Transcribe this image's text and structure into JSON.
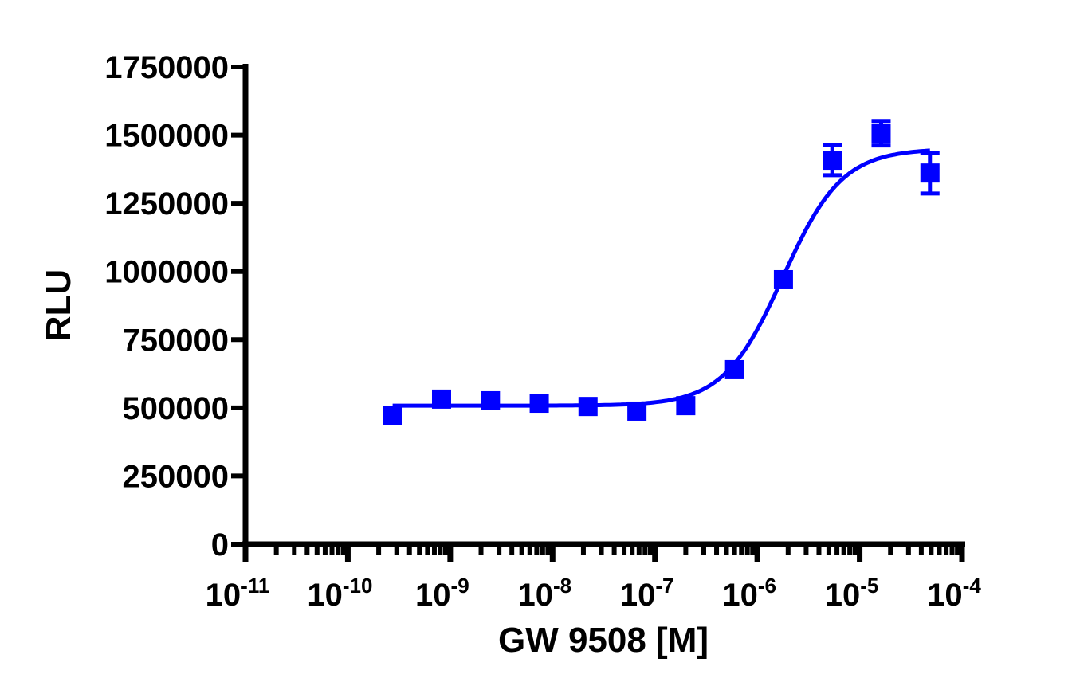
{
  "chart_data": {
    "type": "scatter",
    "title": "",
    "xlabel": "GW 9508 [M]",
    "ylabel": "RLU",
    "xscale": "log",
    "xlim": [
      1e-11,
      0.0001
    ],
    "ylim": [
      0,
      1750000
    ],
    "x_ticks": [
      {
        "base": "10",
        "exp": "-11"
      },
      {
        "base": "10",
        "exp": "-10"
      },
      {
        "base": "10",
        "exp": "-9"
      },
      {
        "base": "10",
        "exp": "-8"
      },
      {
        "base": "10",
        "exp": "-7"
      },
      {
        "base": "10",
        "exp": "-6"
      },
      {
        "base": "10",
        "exp": "-5"
      },
      {
        "base": "10",
        "exp": "-4"
      }
    ],
    "y_ticks": [
      "0",
      "250000",
      "500000",
      "750000",
      "1000000",
      "1250000",
      "1500000",
      "1750000"
    ],
    "grid": false,
    "legend": null,
    "series": [
      {
        "name": "GW 9508",
        "color": "#0000ff",
        "marker": "square",
        "fit": "sigmoidal dose-response",
        "x": [
          2.74e-10,
          8.23e-10,
          2.47e-09,
          7.41e-09,
          2.22e-08,
          6.67e-08,
          2e-07,
          6e-07,
          1.8e-06,
          5.4e-06,
          1.62e-05,
          4.86e-05
        ],
        "y": [
          473000,
          532000,
          526000,
          517000,
          505000,
          488000,
          508000,
          640000,
          970000,
          1408000,
          1507000,
          1361000
        ],
        "error": [
          0,
          0,
          0,
          0,
          0,
          0,
          0,
          0,
          0,
          55000,
          45000,
          75000
        ]
      }
    ],
    "fit_params": {
      "bottom": 508000,
      "top": 1450000,
      "log_ec50": -5.75,
      "hill_slope": 1.5
    }
  }
}
